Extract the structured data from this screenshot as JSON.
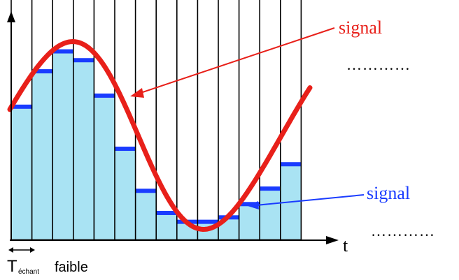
{
  "labels": {
    "signal_top": "signal",
    "signal_bottom": "signal",
    "dots_top": "…………",
    "dots_bottom": "…………",
    "t_axis": "t",
    "period_main": "T",
    "period_sub": "échant",
    "period_word": "faible"
  },
  "colors": {
    "signal_curve": "#e8201a",
    "sample_level": "#1a3cff",
    "bar_fill": "#a9e3f3",
    "arrow_red": "#e8201a",
    "arrow_blue": "#1a3cff",
    "axis": "#000000"
  },
  "samples": {
    "count": 14,
    "levels": [
      0.6,
      0.76,
      0.85,
      0.81,
      0.65,
      0.41,
      0.22,
      0.12,
      0.08,
      0.08,
      0.1,
      0.16,
      0.23,
      0.34
    ]
  },
  "vertical_lines": {
    "count": 15
  }
}
